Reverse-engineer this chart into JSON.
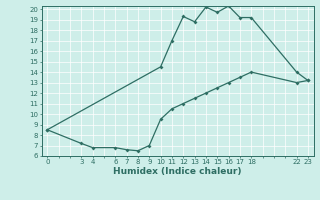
{
  "xlabel": "Humidex (Indice chaleur)",
  "bg_color": "#ceeee9",
  "line_color": "#2e6e63",
  "grid_color": "#ffffff",
  "yticks": [
    6,
    7,
    8,
    9,
    10,
    11,
    12,
    13,
    14,
    15,
    16,
    17,
    18,
    19,
    20
  ],
  "xticks": [
    0,
    3,
    4,
    6,
    7,
    8,
    9,
    10,
    11,
    12,
    13,
    14,
    15,
    16,
    17,
    18,
    22,
    23
  ],
  "line1_x": [
    0,
    3,
    4,
    6,
    7,
    8,
    9,
    10,
    11,
    12,
    13,
    14,
    15,
    16,
    17,
    18,
    22,
    23
  ],
  "line1_y": [
    8.5,
    7.2,
    6.8,
    6.8,
    6.6,
    6.5,
    7.0,
    9.5,
    10.5,
    11.0,
    11.5,
    12.0,
    12.5,
    13.0,
    13.5,
    14.0,
    13.0,
    13.2
  ],
  "line2_x": [
    0,
    10,
    11,
    12,
    13,
    14,
    15,
    16,
    17,
    18,
    22,
    23
  ],
  "line2_y": [
    8.5,
    14.5,
    17.0,
    19.3,
    18.8,
    20.2,
    19.7,
    20.3,
    19.2,
    19.2,
    14.0,
    13.2
  ]
}
